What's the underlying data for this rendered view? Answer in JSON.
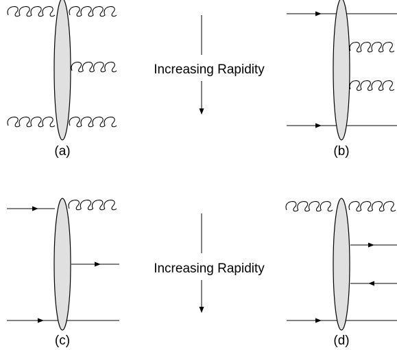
{
  "colors": {
    "line": "#000000",
    "blob_fill": "#e0e0e0",
    "background": "#ffffff"
  },
  "arrow_text": {
    "top": "Increasing Rapidity",
    "bottom": "Increasing Rapidity"
  },
  "panels": [
    {
      "label": "(a)",
      "incoming_left": [
        "gluon",
        "gluon"
      ],
      "outgoing_right": [
        "gluon",
        "gluon",
        "gluon"
      ]
    },
    {
      "label": "(b)",
      "incoming_left": [
        "quark",
        "quark"
      ],
      "outgoing_right": [
        "quark",
        "gluon",
        "gluon",
        "quark"
      ]
    },
    {
      "label": "(c)",
      "incoming_left": [
        "quark",
        "quark"
      ],
      "outgoing_right": [
        "gluon",
        "quark",
        "quark"
      ]
    },
    {
      "label": "(d)",
      "incoming_left": [
        "gluon",
        "quark"
      ],
      "outgoing_right": [
        "gluon",
        "quark",
        "antiquark",
        "quark"
      ]
    }
  ]
}
